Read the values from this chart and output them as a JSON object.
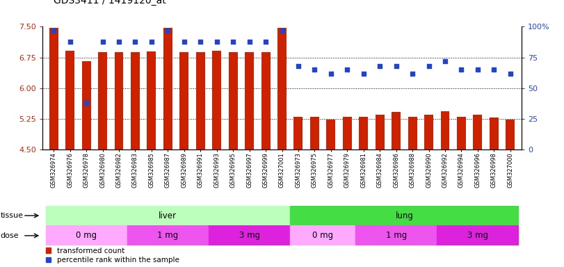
{
  "title": "GDS3411 / 1419120_at",
  "samples": [
    "GSM326974",
    "GSM326976",
    "GSM326978",
    "GSM326980",
    "GSM326982",
    "GSM326983",
    "GSM326985",
    "GSM326987",
    "GSM326989",
    "GSM326991",
    "GSM326993",
    "GSM326995",
    "GSM326997",
    "GSM326999",
    "GSM327001",
    "GSM326973",
    "GSM326975",
    "GSM326977",
    "GSM326979",
    "GSM326981",
    "GSM326984",
    "GSM326986",
    "GSM326988",
    "GSM326990",
    "GSM326992",
    "GSM326994",
    "GSM326996",
    "GSM326998",
    "GSM327000"
  ],
  "bar_values": [
    7.47,
    6.92,
    6.65,
    6.88,
    6.88,
    6.88,
    6.9,
    7.47,
    6.88,
    6.88,
    6.92,
    6.88,
    6.88,
    6.88,
    7.47,
    5.3,
    5.3,
    5.23,
    5.3,
    5.3,
    5.35,
    5.42,
    5.3,
    5.35,
    5.44,
    5.3,
    5.35,
    5.28,
    5.23
  ],
  "dot_values": [
    97,
    88,
    38,
    88,
    88,
    88,
    88,
    97,
    88,
    88,
    88,
    88,
    88,
    88,
    97,
    68,
    65,
    62,
    65,
    62,
    68,
    68,
    62,
    68,
    72,
    65,
    65,
    65,
    62
  ],
  "bar_color": "#cc2200",
  "dot_color": "#2244cc",
  "ylim_left": [
    4.5,
    7.5
  ],
  "ylim_right": [
    0,
    100
  ],
  "yticks_left": [
    4.5,
    5.25,
    6.0,
    6.75,
    7.5
  ],
  "yticks_right": [
    0,
    25,
    50,
    75,
    100
  ],
  "ytick_labels_right": [
    "0",
    "25",
    "50",
    "75",
    "100%"
  ],
  "grid_values": [
    5.25,
    6.0,
    6.75
  ],
  "tissue_groups": [
    {
      "label": "liver",
      "start": 0,
      "end": 15,
      "color": "#bbffbb"
    },
    {
      "label": "lung",
      "start": 15,
      "end": 29,
      "color": "#44dd44"
    }
  ],
  "dose_groups": [
    {
      "label": "0 mg",
      "start": 0,
      "end": 5,
      "color": "#ffaaff"
    },
    {
      "label": "1 mg",
      "start": 5,
      "end": 10,
      "color": "#ee55ee"
    },
    {
      "label": "3 mg",
      "start": 10,
      "end": 15,
      "color": "#dd22dd"
    },
    {
      "label": "0 mg",
      "start": 15,
      "end": 19,
      "color": "#ffaaff"
    },
    {
      "label": "1 mg",
      "start": 19,
      "end": 24,
      "color": "#ee55ee"
    },
    {
      "label": "3 mg",
      "start": 24,
      "end": 29,
      "color": "#dd22dd"
    }
  ],
  "legend_items": [
    {
      "label": "transformed count",
      "color": "#cc2200"
    },
    {
      "label": "percentile rank within the sample",
      "color": "#2244cc"
    }
  ],
  "bar_width": 0.55,
  "baseline": 4.5,
  "dot_size": 22,
  "tissue_row_label": "tissue",
  "dose_row_label": "dose"
}
